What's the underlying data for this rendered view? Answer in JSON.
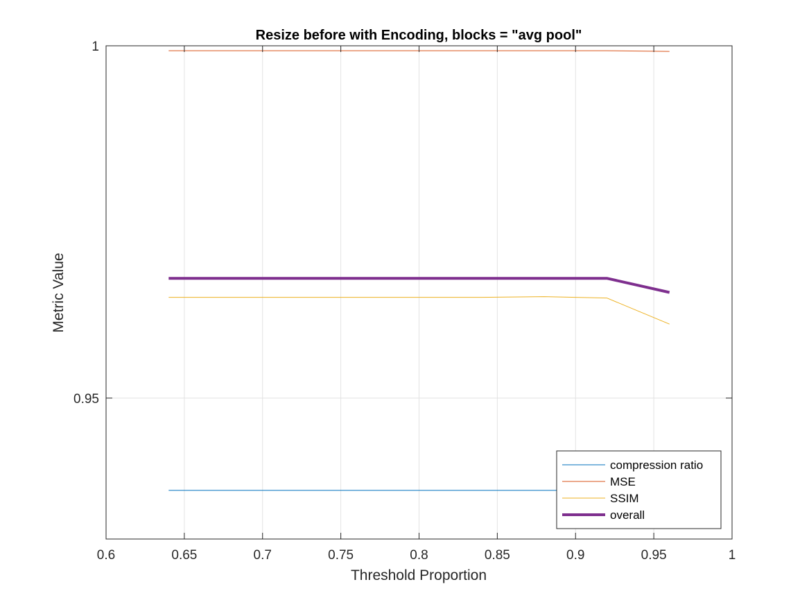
{
  "chart_data": {
    "type": "line",
    "title": "Resize before with Encoding, blocks = \"avg pool\"",
    "xlabel": "Threshold Proportion",
    "ylabel": "Metric Value",
    "xlim": [
      0.6,
      1.0
    ],
    "ylim": [
      0.93,
      1.0
    ],
    "xticks": [
      0.6,
      0.65,
      0.7,
      0.75,
      0.8,
      0.85,
      0.9,
      0.95,
      1.0
    ],
    "xtick_labels": [
      "0.6",
      "0.65",
      "0.7",
      "0.75",
      "0.8",
      "0.85",
      "0.9",
      "0.95",
      "1"
    ],
    "yticks": [
      0.95,
      1.0
    ],
    "ytick_labels": [
      "0.95",
      "1"
    ],
    "grid": true,
    "legend_position": "bottom-right",
    "series": [
      {
        "name": "compression ratio",
        "color": "#0072BD",
        "line_width": 1,
        "x": [
          0.64,
          0.68,
          0.72,
          0.76,
          0.8,
          0.84,
          0.88,
          0.92,
          0.96
        ],
        "y": [
          0.9369,
          0.9369,
          0.9369,
          0.9369,
          0.9369,
          0.9369,
          0.9369,
          0.9369,
          0.9369
        ]
      },
      {
        "name": "MSE",
        "color": "#D95319",
        "line_width": 1,
        "x": [
          0.64,
          0.68,
          0.72,
          0.76,
          0.8,
          0.84,
          0.88,
          0.92,
          0.96
        ],
        "y": [
          0.9993,
          0.9993,
          0.9993,
          0.9993,
          0.9993,
          0.9993,
          0.9993,
          0.9993,
          0.9992
        ]
      },
      {
        "name": "SSIM",
        "color": "#EDB120",
        "line_width": 1,
        "x": [
          0.64,
          0.68,
          0.72,
          0.76,
          0.8,
          0.84,
          0.88,
          0.92,
          0.96
        ],
        "y": [
          0.9643,
          0.9643,
          0.9643,
          0.9643,
          0.9643,
          0.9643,
          0.9644,
          0.9642,
          0.9605
        ]
      },
      {
        "name": "overall",
        "color": "#7E2F8E",
        "line_width": 4,
        "x": [
          0.64,
          0.68,
          0.72,
          0.76,
          0.8,
          0.84,
          0.88,
          0.92,
          0.96
        ],
        "y": [
          0.967,
          0.967,
          0.967,
          0.967,
          0.967,
          0.967,
          0.967,
          0.967,
          0.965
        ]
      }
    ]
  }
}
